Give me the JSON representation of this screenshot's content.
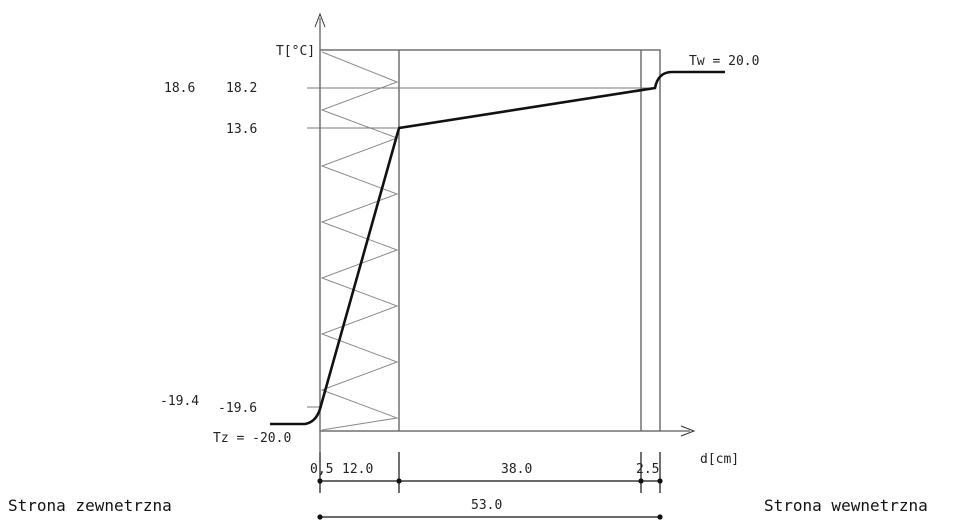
{
  "diagram": {
    "axis_y_label": "T[°C]",
    "axis_x_label": "d[cm]",
    "tw_label": "Tw = 20.0",
    "tz_label": "Tz = -20.0",
    "temps": {
      "t18_6": "18.6",
      "t18_2": "18.2",
      "t13_6": "13.6",
      "tm19_4": "-19.4",
      "tm19_6": "-19.6"
    },
    "dims": {
      "d0_5": "0,5",
      "d12": "12.0",
      "d38": "38.0",
      "d2_5": "2.5",
      "total": "53.0"
    },
    "outside_label": "Strona zewnetrzna",
    "inside_label": "Strona wewnetrzna"
  },
  "chart_data": {
    "type": "line",
    "title": "",
    "xlabel": "d[cm]",
    "ylabel": "T[°C]",
    "layers_cm": [
      0.5,
      12.0,
      38.0,
      2.5
    ],
    "total_thickness_cm": 53.0,
    "series": [
      {
        "x": [
          0,
          0.5,
          12.5,
          50.5,
          53.0
        ],
        "y": [
          -19.4,
          -19.6,
          13.6,
          18.2,
          18.6
        ]
      }
    ],
    "boundary_conditions": {
      "outside": -20.0,
      "inside": 20.0
    }
  }
}
